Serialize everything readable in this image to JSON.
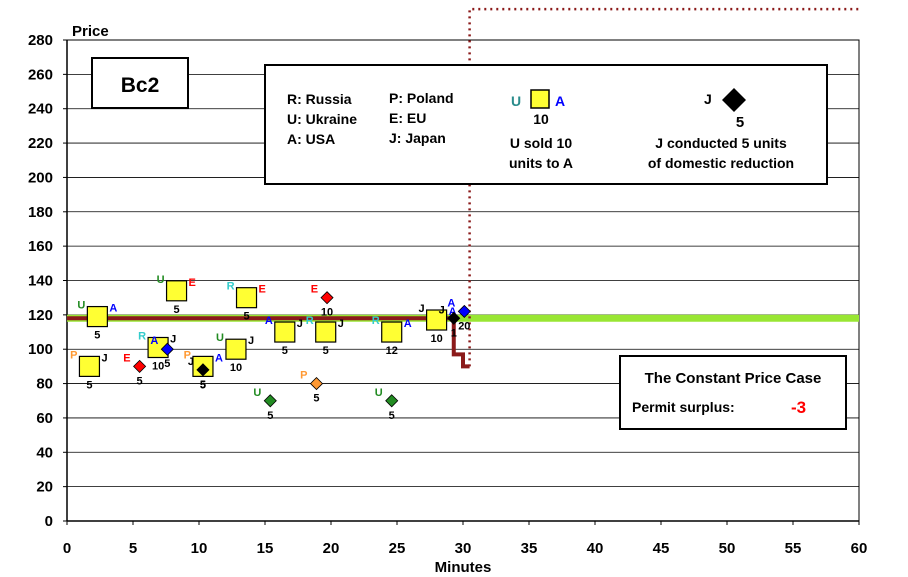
{
  "chart_data": {
    "type": "scatter",
    "xlabel": "Minutes",
    "ylabel": "Price",
    "xlim": [
      0,
      60
    ],
    "ylim": [
      0,
      280
    ],
    "x_ticks": [
      0,
      5,
      10,
      15,
      20,
      25,
      30,
      35,
      40,
      45,
      50,
      55,
      60
    ],
    "y_ticks": [
      0,
      20,
      40,
      60,
      80,
      100,
      120,
      140,
      160,
      180,
      200,
      220,
      240,
      260,
      280
    ],
    "grid": "horizontal",
    "session_label": "Bc2",
    "legend": {
      "countries": [
        "R: Russia",
        "P: Poland",
        "U: Ukraine",
        "E: EU",
        "A: USA",
        "J: Japan"
      ],
      "trade_example": {
        "seller": "U",
        "buyer": "A",
        "qty": "10",
        "caption_line1": "U sold 10",
        "caption_line2": "units to A"
      },
      "domestic_example": {
        "country": "J",
        "qty": "5",
        "caption_line1": "J conducted 5 units",
        "caption_line2": "of domestic reduction"
      }
    },
    "case_box": {
      "title": "The Constant Price Case",
      "surplus_label": "Permit surplus:",
      "surplus_value": "-3"
    },
    "colors": {
      "trade_fill": "#ffff33",
      "R": "#33cccc",
      "P": "#ff9933",
      "U": "#228b22",
      "E": "#ff0000",
      "A": "#0000ff",
      "J": "#000000",
      "constant_price": "#99e633",
      "step_line": "#8b1a1a",
      "dotted_line": "#8b1a1a"
    },
    "constant_price": 118,
    "price_step_line": [
      [
        0,
        118
      ],
      [
        29.3,
        118
      ],
      [
        29.3,
        97
      ],
      [
        30,
        97
      ],
      [
        30,
        90
      ],
      [
        30.5,
        90
      ]
    ],
    "dotted_line": [
      [
        30.5,
        90
      ],
      [
        30.5,
        298
      ],
      [
        60,
        298
      ]
    ],
    "trades": [
      {
        "x": 2.3,
        "y": 119,
        "seller": "U",
        "buyer": "A",
        "qty": "5"
      },
      {
        "x": 1.7,
        "y": 90,
        "seller": "P",
        "buyer": "J",
        "qty": "5"
      },
      {
        "x": 6.9,
        "y": 101,
        "seller": "R",
        "buyer": "J",
        "qty": "10"
      },
      {
        "x": 8.3,
        "y": 134,
        "seller": "U",
        "buyer": "E",
        "qty": "5"
      },
      {
        "x": 10.3,
        "y": 90,
        "seller": "P",
        "buyer": "A",
        "qty": "5"
      },
      {
        "x": 12.8,
        "y": 100,
        "seller": "U",
        "buyer": "J",
        "qty": "10"
      },
      {
        "x": 13.6,
        "y": 130,
        "seller": "R",
        "buyer": "E",
        "qty": "5"
      },
      {
        "x": 16.5,
        "y": 110,
        "seller": "A",
        "buyer": "J",
        "qty": "5"
      },
      {
        "x": 19.6,
        "y": 110,
        "seller": "R",
        "buyer": "J",
        "qty": "5"
      },
      {
        "x": 24.6,
        "y": 110,
        "seller": "R",
        "buyer": "A",
        "qty": "12"
      },
      {
        "x": 28.0,
        "y": 117,
        "seller": "J",
        "buyer": "A",
        "qty": "10"
      }
    ],
    "domestic": [
      {
        "x": 5.5,
        "y": 90,
        "country": "E",
        "qty": "5"
      },
      {
        "x": 7.6,
        "y": 100,
        "country": "A",
        "qty": "5"
      },
      {
        "x": 10.3,
        "y": 88,
        "country": "J",
        "qty": "5"
      },
      {
        "x": 15.4,
        "y": 70,
        "country": "U",
        "qty": "5"
      },
      {
        "x": 18.9,
        "y": 80,
        "country": "P",
        "qty": "5"
      },
      {
        "x": 19.7,
        "y": 130,
        "country": "E",
        "qty": "10"
      },
      {
        "x": 24.6,
        "y": 70,
        "country": "U",
        "qty": "5"
      },
      {
        "x": 29.3,
        "y": 118,
        "country": "J",
        "qty": "1"
      },
      {
        "x": 30.1,
        "y": 122,
        "country": "A",
        "qty": "20"
      }
    ]
  }
}
